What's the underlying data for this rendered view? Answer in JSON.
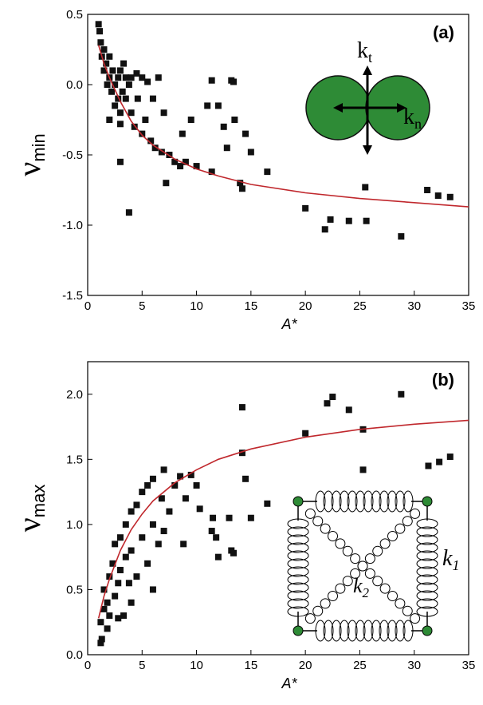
{
  "chart_data": [
    {
      "type": "scatter",
      "panel_label": "(a)",
      "x_label": "A*",
      "y_label": "ν",
      "y_label_sub": "min",
      "xlim": [
        0,
        35
      ],
      "ylim": [
        -1.5,
        0.5
      ],
      "xticks": [
        0,
        5,
        10,
        15,
        20,
        25,
        30,
        35
      ],
      "yticks": [
        0.5,
        {
          "value": 0,
          "label": "0.0"
        },
        -0.5,
        {
          "value": -1,
          "label": "-1.0"
        },
        -1.5
      ],
      "points": {
        "color": "#111111",
        "x": [
          1,
          1.1,
          1.2,
          1.3,
          1.5,
          1.5,
          1.7,
          1.8,
          2,
          2,
          2.2,
          2.3,
          2.5,
          2.5,
          2.8,
          2.8,
          3,
          3,
          3.2,
          3.3,
          3.5,
          3.5,
          3.8,
          4,
          4,
          4.3,
          4.5,
          4.6,
          5,
          5,
          5.3,
          5.5,
          5.8,
          6,
          6.2,
          6.5,
          6.8,
          7,
          7.2,
          7.5,
          8,
          8.5,
          9,
          9.5,
          10,
          11.4,
          11.4,
          13.2,
          13.4,
          12,
          12.5,
          12.8,
          13.5,
          14,
          14.2,
          14.5,
          15,
          16.5,
          20,
          21.8,
          22.3,
          24,
          25.5,
          25.6,
          28.8,
          31.2,
          32.2,
          33.3,
          3.8,
          3,
          3,
          2,
          8.7,
          11
        ],
        "y": [
          0.43,
          0.38,
          0.3,
          0.2,
          0.25,
          0.1,
          0.15,
          0,
          0.05,
          0.2,
          -0.05,
          0.1,
          0,
          -0.15,
          0.05,
          -0.1,
          0.1,
          -0.2,
          -0.05,
          0.15,
          -0.1,
          0.05,
          0,
          -0.2,
          0.05,
          -0.3,
          0.08,
          -0.1,
          0.05,
          -0.35,
          -0.25,
          0.02,
          -0.4,
          -0.1,
          -0.45,
          0.05,
          -0.48,
          -0.2,
          -0.7,
          -0.5,
          -0.55,
          -0.58,
          -0.55,
          -0.25,
          -0.58,
          -0.62,
          0.03,
          0.03,
          0.02,
          -0.15,
          -0.3,
          -0.45,
          -0.25,
          -0.7,
          -0.74,
          -0.35,
          -0.48,
          -0.62,
          -0.88,
          -1.03,
          -0.96,
          -0.97,
          -0.73,
          -0.97,
          -1.08,
          -0.75,
          -0.79,
          -0.8,
          -0.91,
          -0.55,
          -0.28,
          -0.25,
          -0.35,
          -0.15
        ]
      },
      "fit": {
        "color": "#c0282d",
        "x": [
          1,
          1.5,
          2,
          3,
          4,
          5,
          6,
          8,
          10,
          12,
          15,
          20,
          25,
          30,
          35
        ],
        "y": [
          0.28,
          0.15,
          0.05,
          -0.12,
          -0.26,
          -0.36,
          -0.43,
          -0.53,
          -0.6,
          -0.65,
          -0.71,
          -0.77,
          -0.81,
          -0.84,
          -0.87
        ]
      },
      "inset_labels": {
        "kt": "k",
        "kt_sub": "t",
        "kn": "k",
        "kn_sub": "n"
      }
    },
    {
      "type": "scatter",
      "panel_label": "(b)",
      "x_label": "A*",
      "y_label": "ν",
      "y_label_sub": "max",
      "xlim": [
        0,
        35
      ],
      "ylim": [
        0,
        2.25
      ],
      "xticks": [
        0,
        5,
        10,
        15,
        20,
        25,
        30,
        35
      ],
      "yticks": [
        {
          "value": 0,
          "label": "0.0"
        },
        0.5,
        {
          "value": 1,
          "label": "1.0"
        },
        1.5,
        {
          "value": 2,
          "label": "2.0"
        }
      ],
      "points": {
        "color": "#111111",
        "x": [
          1.2,
          1.3,
          1.2,
          1.5,
          1.5,
          1.8,
          2,
          2,
          2.3,
          2.5,
          2.5,
          2.8,
          3,
          3,
          3.3,
          3.5,
          3.5,
          3.8,
          4,
          4,
          4.5,
          4.5,
          5,
          5,
          5.5,
          5.5,
          6,
          6,
          6.5,
          6.8,
          7,
          7,
          7.5,
          8,
          8.5,
          8.8,
          9,
          9.5,
          10,
          10.3,
          11.5,
          11.8,
          11.4,
          12,
          13.2,
          13.4,
          13,
          14.2,
          14.2,
          14.5,
          15,
          16.5,
          20,
          22,
          22.5,
          24,
          25.3,
          25.3,
          28.8,
          31.3,
          32.3,
          33.3,
          2.8,
          4,
          6,
          1.8
        ],
        "y": [
          0.09,
          0.12,
          0.25,
          0.35,
          0.5,
          0.4,
          0.6,
          0.3,
          0.7,
          0.45,
          0.85,
          0.55,
          0.9,
          0.65,
          0.3,
          0.75,
          1,
          0.55,
          1.1,
          0.8,
          0.6,
          1.15,
          0.9,
          1.25,
          0.7,
          1.3,
          1,
          1.35,
          0.85,
          1.2,
          1.42,
          0.95,
          1.1,
          1.3,
          1.37,
          0.85,
          1.2,
          1.38,
          1.3,
          1.12,
          1.05,
          0.9,
          0.95,
          0.75,
          0.8,
          0.78,
          1.05,
          1.9,
          1.55,
          1.35,
          1.05,
          1.16,
          1.7,
          1.93,
          1.98,
          1.88,
          1.73,
          1.42,
          2,
          1.45,
          1.48,
          1.52,
          0.28,
          0.4,
          0.5,
          0.2
        ]
      },
      "fit": {
        "color": "#c0282d",
        "x": [
          1,
          1.5,
          2,
          3,
          4,
          5,
          6,
          8,
          10,
          12,
          15,
          20,
          25,
          30,
          35
        ],
        "y": [
          0.28,
          0.45,
          0.58,
          0.8,
          0.96,
          1.08,
          1.18,
          1.32,
          1.42,
          1.5,
          1.58,
          1.67,
          1.73,
          1.77,
          1.8
        ]
      },
      "inset_labels": {
        "k1": "k",
        "k1_sub": "1",
        "k2": "k",
        "k2_sub": "2"
      }
    }
  ]
}
